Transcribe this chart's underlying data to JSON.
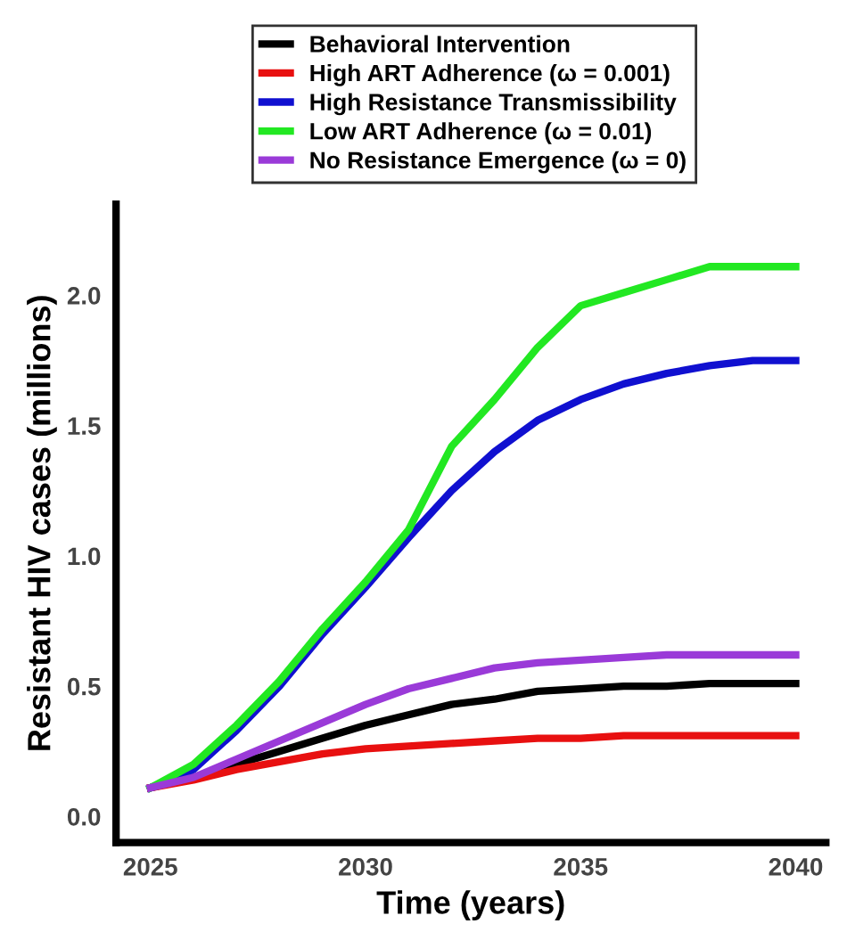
{
  "chart_data": {
    "type": "line",
    "xlabel": "Time (years)",
    "ylabel": "Resistant HIV cases (millions)",
    "x": [
      2025,
      2026,
      2027,
      2028,
      2029,
      2030,
      2031,
      2032,
      2033,
      2034,
      2035,
      2036,
      2037,
      2038,
      2039,
      2040
    ],
    "series": [
      {
        "name": "Behavioral Intervention",
        "color": "#000000",
        "values": [
          0.11,
          0.15,
          0.2,
          0.25,
          0.3,
          0.35,
          0.39,
          0.43,
          0.45,
          0.48,
          0.49,
          0.5,
          0.5,
          0.51,
          0.51,
          0.51
        ]
      },
      {
        "name": "High ART Adherence (ω = 0.001)",
        "color": "#e81010",
        "values": [
          0.11,
          0.14,
          0.18,
          0.21,
          0.24,
          0.26,
          0.27,
          0.28,
          0.29,
          0.3,
          0.3,
          0.31,
          0.31,
          0.31,
          0.31,
          0.31
        ]
      },
      {
        "name": "High Resistance Transmissibility",
        "color": "#1010d0",
        "values": [
          0.11,
          0.18,
          0.33,
          0.5,
          0.7,
          0.88,
          1.07,
          1.25,
          1.4,
          1.52,
          1.6,
          1.66,
          1.7,
          1.73,
          1.75,
          1.75
        ]
      },
      {
        "name": "Low ART Adherence (ω = 0.01)",
        "color": "#22e822",
        "values": [
          0.11,
          0.2,
          0.35,
          0.52,
          0.72,
          0.9,
          1.1,
          1.42,
          1.6,
          1.8,
          1.96,
          2.01,
          2.06,
          2.11,
          2.11,
          2.11
        ]
      },
      {
        "name": "No Resistance Emergence (ω = 0)",
        "color": "#9a3ad8",
        "values": [
          0.11,
          0.15,
          0.22,
          0.29,
          0.36,
          0.43,
          0.49,
          0.53,
          0.57,
          0.59,
          0.6,
          0.61,
          0.62,
          0.62,
          0.62,
          0.62
        ]
      }
    ],
    "xlim": [
      2024.2,
      2040.7
    ],
    "ylim": [
      -0.1,
      2.35
    ],
    "xticks": [
      2025,
      2030,
      2035,
      2040
    ],
    "yticks": [
      {
        "value": 0,
        "label": "0.0"
      },
      {
        "value": 0.5,
        "label": "0.5"
      },
      {
        "value": 1,
        "label": "1.0"
      },
      {
        "value": 1.5,
        "label": "1.5"
      },
      {
        "value": 2,
        "label": "2.0"
      }
    ],
    "legend": "top",
    "grid": false,
    "marker": "none",
    "line_style": "solid"
  }
}
